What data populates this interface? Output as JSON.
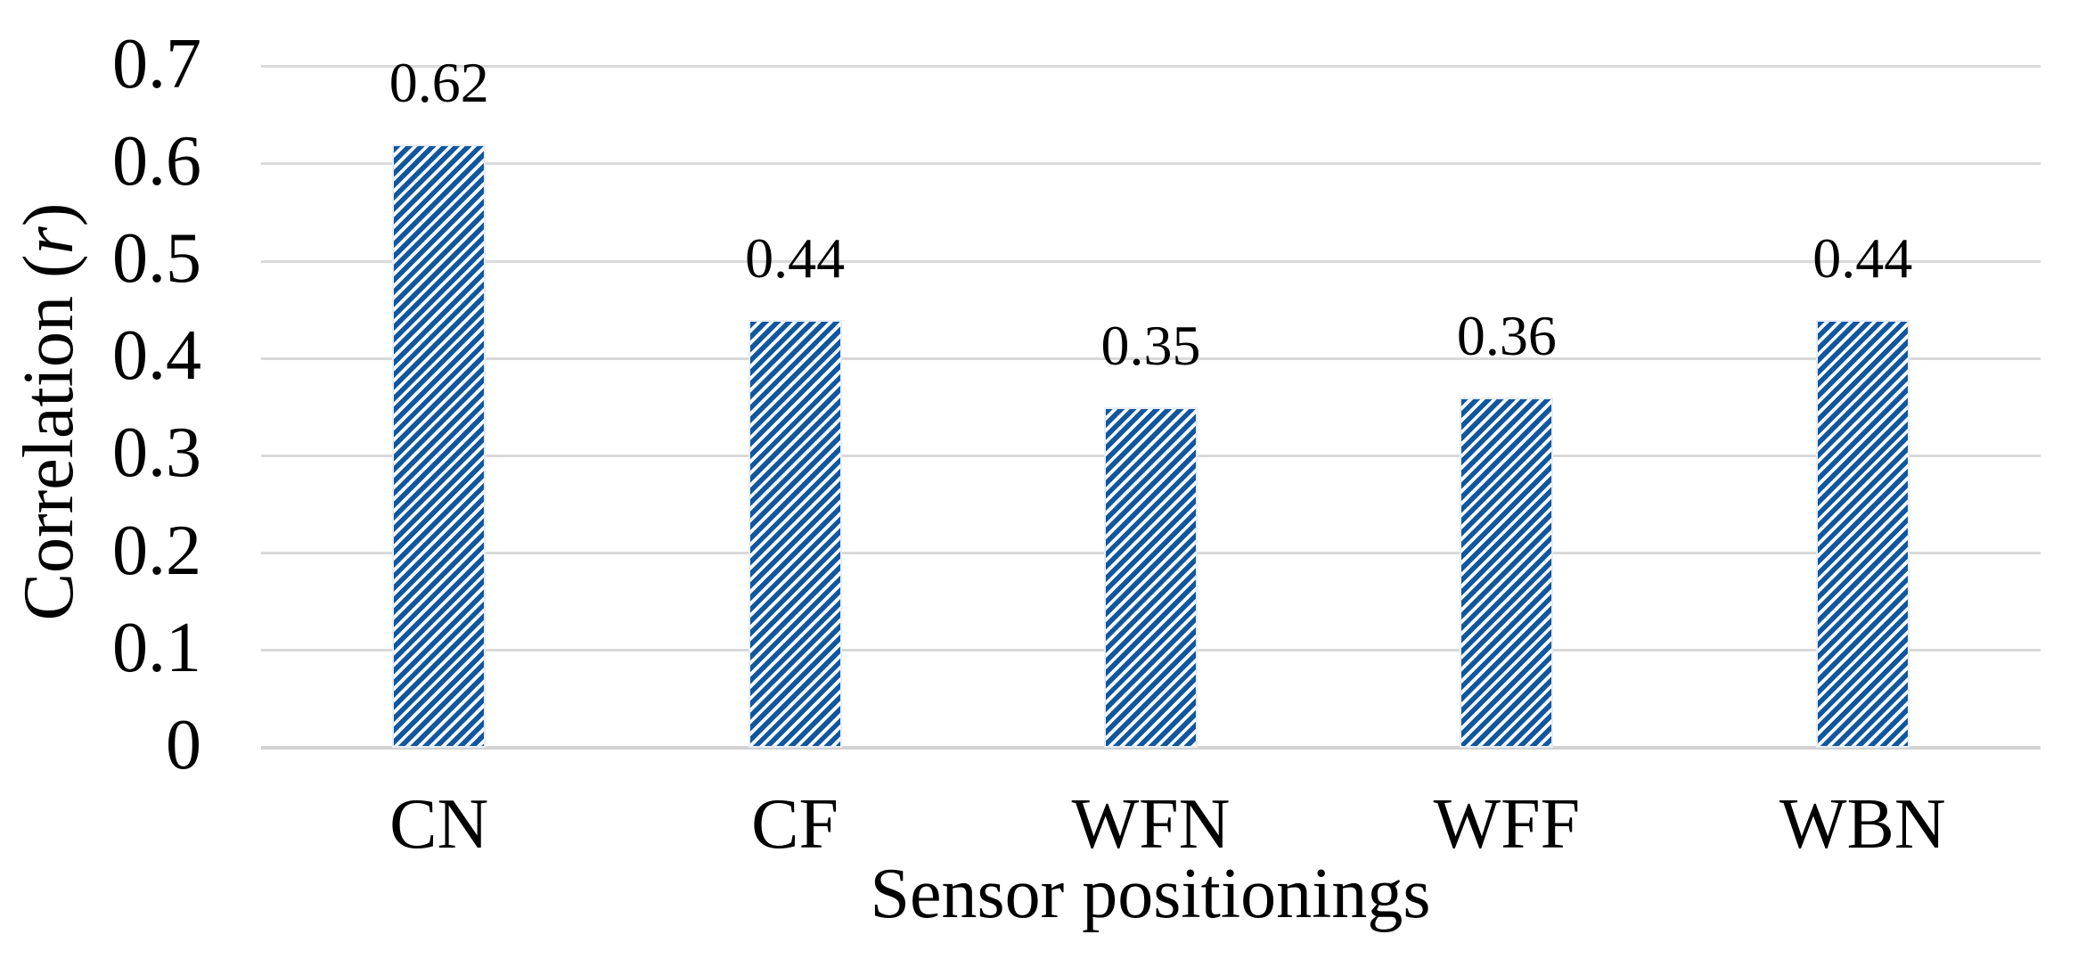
{
  "chart_data": {
    "type": "bar",
    "title": "",
    "categories": [
      "CN",
      "CF",
      "WFN",
      "WFF",
      "WBN"
    ],
    "values": [
      0.62,
      0.44,
      0.35,
      0.36,
      0.44
    ],
    "data_labels": [
      "0.62",
      "0.44",
      "0.35",
      "0.36",
      "0.44"
    ],
    "xlabel": "Sensor positionings",
    "ylabel": "Correlation (r)",
    "ylabel_parts": {
      "prefix": "Correlation (",
      "italic": "r",
      "suffix": ")"
    },
    "ylim": [
      0,
      0.7
    ],
    "yticks": [
      0,
      0.1,
      0.2,
      0.3,
      0.4,
      0.5,
      0.6,
      0.7
    ],
    "ytick_labels": [
      "0",
      "0.1",
      "0.2",
      "0.3",
      "0.4",
      "0.5",
      "0.6",
      "0.7"
    ],
    "grid": true,
    "legend": false,
    "bar_pattern": "diagonal-stripes-up",
    "colors": {
      "bar_stripe": "#1057A0",
      "bar_background": "#FFFFFF",
      "gridline": "#D9D9D9",
      "axis_line": "#D2D2D2",
      "text": "#000000"
    }
  }
}
